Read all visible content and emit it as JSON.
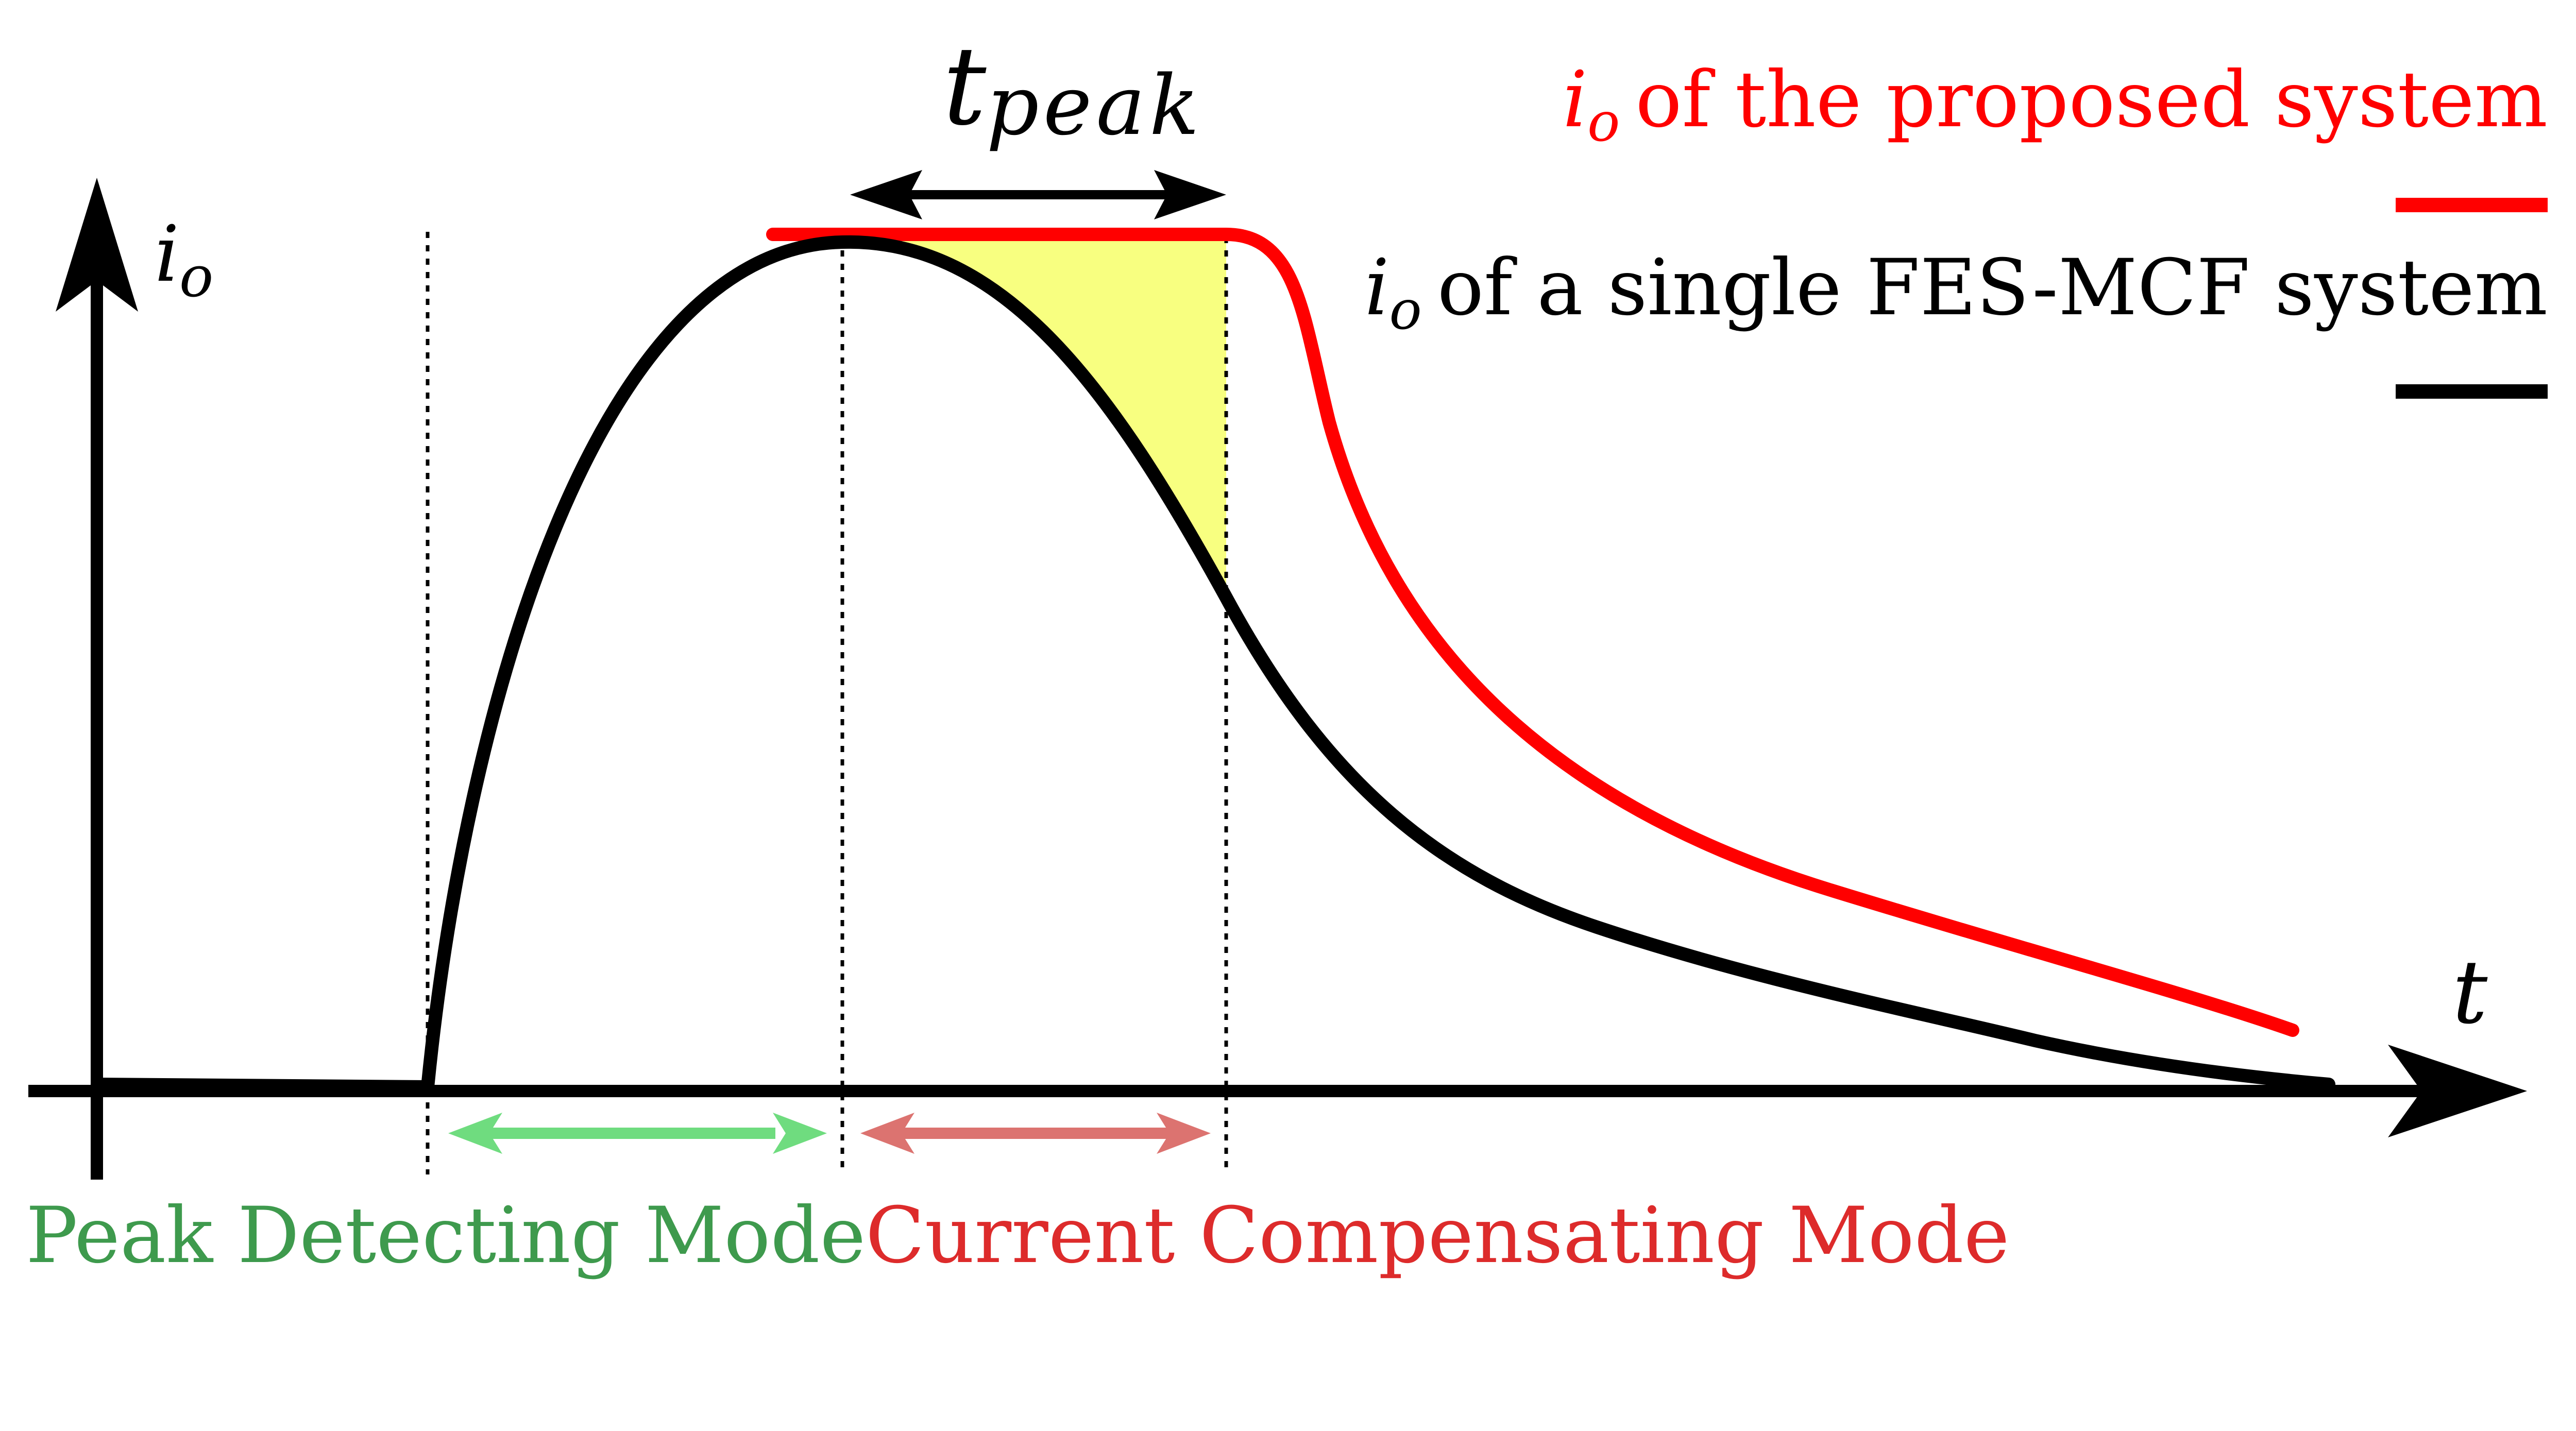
{
  "axes": {
    "y_symbol": "i",
    "y_subscript": "o",
    "x_symbol": "t"
  },
  "peak_interval": {
    "symbol": "t",
    "subscript": "peak"
  },
  "legend": [
    {
      "symbol": "i",
      "subscript": "o",
      "text": "of the proposed system",
      "color": "#ff0000"
    },
    {
      "symbol": "i",
      "subscript": "o",
      "text": "of a single FES-MCF system",
      "color": "#000000"
    }
  ],
  "modes": [
    {
      "label": "Peak Detecting Mode",
      "color": "#3e9a4d",
      "arrow_color": "#6fdc7f"
    },
    {
      "label": "Current Compensating Mode",
      "color": "#dd2b2b",
      "arrow_color": "#dc7370"
    }
  ],
  "colors": {
    "fill_area": "#f8ff80",
    "proposed_curve": "#ff0000",
    "single_curve": "#000000"
  }
}
